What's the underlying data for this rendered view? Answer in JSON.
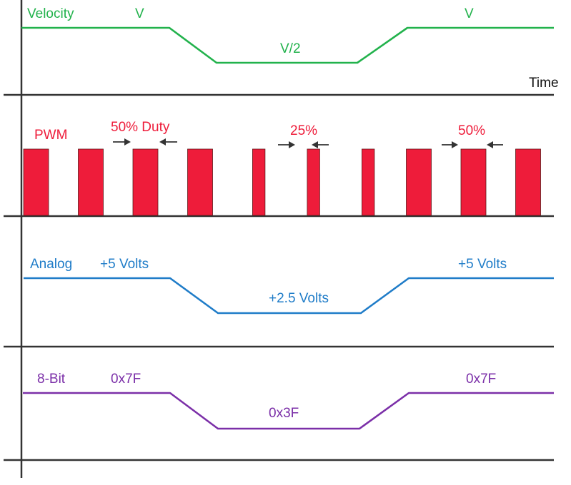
{
  "colors": {
    "axis": "#333333",
    "velocity": "#22b24c",
    "pwm": "#ee1c3a",
    "analog": "#1f7cc8",
    "digital": "#7b2fa8",
    "text_dark": "#111111"
  },
  "velocity": {
    "label": "Velocity",
    "high_left": "V",
    "low": "V/2",
    "high_right": "V",
    "axis_label": "Time"
  },
  "pwm": {
    "label": "PWM",
    "duty_left": "50% Duty",
    "duty_mid": "25%",
    "duty_right": "50%",
    "duty_cycles": [
      0.5,
      0.5,
      0.5,
      0.5,
      0.25,
      0.25,
      0.25,
      0.5,
      0.5,
      0.5
    ]
  },
  "analog": {
    "label": "Analog",
    "high_left": "+5 Volts",
    "low": "+2.5 Volts",
    "high_right": "+5 Volts"
  },
  "digital": {
    "label": "8-Bit",
    "high_left": "0x7F",
    "low": "0x3F",
    "high_right": "0x7F"
  }
}
